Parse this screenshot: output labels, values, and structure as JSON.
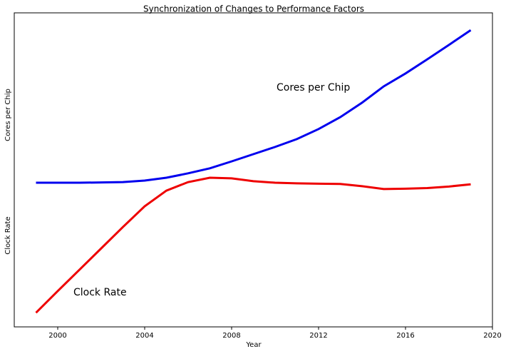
{
  "chart_data": {
    "type": "line",
    "title": "Synchronization of Changes to Performance Factors",
    "xlabel": "Year",
    "ylabel_upper": "Cores per Chip",
    "ylabel_lower": "Clock Rate",
    "x": [
      1999,
      2000,
      2001,
      2002,
      2003,
      2004,
      2005,
      2006,
      2007,
      2008,
      2009,
      2010,
      2011,
      2012,
      2013,
      2014,
      2015,
      2016,
      2017,
      2018,
      2019
    ],
    "series": [
      {
        "name": "Cores per Chip",
        "color": "#0000ee",
        "values": [
          45.9,
          45.9,
          45.9,
          46.0,
          46.1,
          46.6,
          47.5,
          48.9,
          50.5,
          52.7,
          55.0,
          57.3,
          59.8,
          63.0,
          66.8,
          71.4,
          76.6,
          80.7,
          85.2,
          89.8,
          94.5
        ]
      },
      {
        "name": "Clock Rate",
        "color": "#ee0000",
        "values": [
          4.5,
          11.4,
          18.2,
          25.0,
          31.8,
          38.4,
          43.4,
          46.1,
          47.5,
          47.3,
          46.4,
          45.9,
          45.7,
          45.6,
          45.5,
          44.8,
          43.9,
          44.0,
          44.2,
          44.7,
          45.4
        ]
      }
    ],
    "annotations": [
      "Cores per Chip",
      "Clock Rate"
    ],
    "xlim": [
      1998,
      2020
    ],
    "xticks": [
      2000,
      2004,
      2008,
      2012,
      2016,
      2020
    ],
    "ylim": [
      0,
      100
    ],
    "grid": false
  }
}
